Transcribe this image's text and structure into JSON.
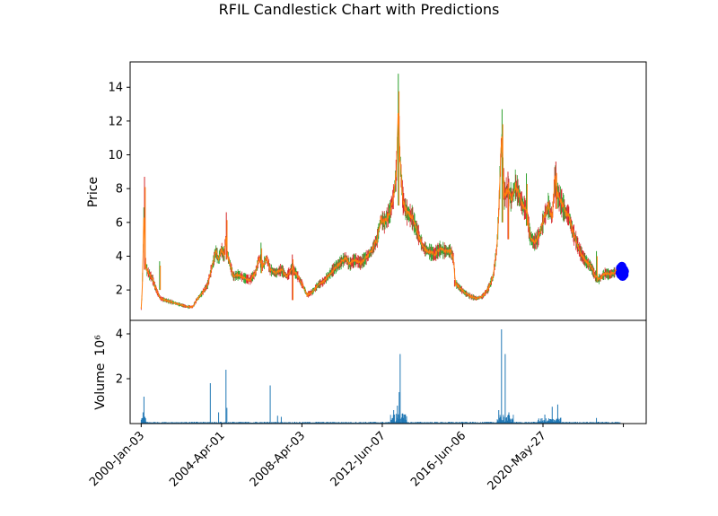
{
  "chart_data": {
    "title": "RFIL Candlestick Chart with Predictions",
    "type": "candlestick",
    "price_panel": {
      "ylabel": "Price",
      "ylim": [
        0.2,
        15.5
      ],
      "yticks": [
        2,
        4,
        6,
        8,
        10,
        12,
        14
      ],
      "colors": {
        "up": "#2ca02c",
        "down": "#d62728",
        "line": "#ff7f0e",
        "prediction": "#0000ff"
      },
      "series_points": [
        [
          0,
          0.9
        ],
        [
          0.05,
          1.8
        ],
        [
          0.1,
          4.2
        ],
        [
          0.15,
          6.8
        ],
        [
          0.2,
          3.9
        ],
        [
          0.3,
          3.2
        ],
        [
          0.45,
          2.9
        ],
        [
          0.6,
          2.7
        ],
        [
          0.75,
          2.2
        ],
        [
          0.9,
          1.8
        ],
        [
          1.05,
          1.5
        ],
        [
          1.3,
          1.4
        ],
        [
          1.6,
          1.3
        ],
        [
          1.9,
          1.2
        ],
        [
          2.2,
          1.1
        ],
        [
          2.5,
          1.0
        ],
        [
          2.8,
          1.0
        ],
        [
          3.0,
          1.4
        ],
        [
          3.3,
          1.8
        ],
        [
          3.6,
          2.3
        ],
        [
          3.8,
          3.2
        ],
        [
          3.9,
          3.6
        ],
        [
          4.05,
          4.3
        ],
        [
          4.2,
          3.8
        ],
        [
          4.35,
          4.4
        ],
        [
          4.5,
          4.0
        ],
        [
          4.6,
          5.1
        ],
        [
          4.7,
          4.0
        ],
        [
          4.9,
          3.2
        ],
        [
          5.0,
          2.8
        ],
        [
          5.3,
          2.9
        ],
        [
          5.6,
          2.7
        ],
        [
          5.9,
          2.6
        ],
        [
          6.2,
          3.0
        ],
        [
          6.4,
          3.9
        ],
        [
          6.6,
          3.4
        ],
        [
          6.8,
          3.9
        ],
        [
          7.0,
          3.2
        ],
        [
          7.3,
          3.0
        ],
        [
          7.6,
          3.2
        ],
        [
          7.9,
          2.8
        ],
        [
          8.2,
          3.3
        ],
        [
          8.5,
          2.8
        ],
        [
          8.8,
          2.2
        ],
        [
          9.0,
          1.7
        ],
        [
          9.3,
          1.9
        ],
        [
          9.6,
          2.3
        ],
        [
          9.9,
          2.5
        ],
        [
          10.2,
          2.9
        ],
        [
          10.5,
          3.3
        ],
        [
          10.8,
          3.6
        ],
        [
          11.1,
          3.9
        ],
        [
          11.3,
          3.5
        ],
        [
          11.6,
          3.8
        ],
        [
          11.9,
          3.6
        ],
        [
          12.2,
          3.9
        ],
        [
          12.5,
          4.3
        ],
        [
          12.8,
          5.0
        ],
        [
          13.0,
          6.2
        ],
        [
          13.2,
          6.0
        ],
        [
          13.5,
          6.6
        ],
        [
          13.7,
          7.6
        ],
        [
          13.85,
          9.0
        ],
        [
          13.95,
          12.5
        ],
        [
          14.05,
          9.6
        ],
        [
          14.2,
          7.3
        ],
        [
          14.4,
          6.6
        ],
        [
          14.7,
          6.3
        ],
        [
          15.0,
          5.4
        ],
        [
          15.3,
          4.5
        ],
        [
          15.6,
          4.3
        ],
        [
          15.9,
          4.1
        ],
        [
          16.2,
          4.4
        ],
        [
          16.5,
          4.3
        ],
        [
          16.8,
          4.3
        ],
        [
          16.95,
          3.8
        ],
        [
          17.05,
          2.4
        ],
        [
          17.3,
          2.1
        ],
        [
          17.6,
          1.8
        ],
        [
          17.9,
          1.6
        ],
        [
          18.2,
          1.5
        ],
        [
          18.5,
          1.6
        ],
        [
          18.8,
          2.0
        ],
        [
          19.1,
          2.8
        ],
        [
          19.3,
          4.5
        ],
        [
          19.4,
          6.6
        ],
        [
          19.55,
          11.0
        ],
        [
          19.7,
          7.6
        ],
        [
          19.9,
          7.9
        ],
        [
          20.1,
          7.4
        ],
        [
          20.3,
          8.2
        ],
        [
          20.5,
          7.6
        ],
        [
          20.7,
          7.0
        ],
        [
          20.9,
          6.7
        ],
        [
          21.1,
          5.2
        ],
        [
          21.3,
          4.8
        ],
        [
          21.5,
          5.0
        ],
        [
          21.7,
          5.6
        ],
        [
          21.9,
          6.4
        ],
        [
          22.1,
          7.0
        ],
        [
          22.3,
          6.3
        ],
        [
          22.45,
          8.6
        ],
        [
          22.6,
          7.6
        ],
        [
          22.8,
          7.2
        ],
        [
          23.0,
          6.6
        ],
        [
          23.2,
          6.4
        ],
        [
          23.4,
          5.5
        ],
        [
          23.6,
          4.9
        ],
        [
          23.8,
          4.3
        ],
        [
          24.0,
          3.9
        ],
        [
          24.2,
          3.6
        ],
        [
          24.4,
          3.4
        ],
        [
          24.6,
          2.9
        ],
        [
          24.8,
          2.6
        ],
        [
          25.0,
          2.8
        ],
        [
          25.2,
          3.0
        ],
        [
          25.4,
          2.9
        ],
        [
          25.6,
          3.0
        ],
        [
          25.8,
          3.1
        ],
        [
          26.0,
          3.2
        ]
      ],
      "spikes": [
        [
          0.18,
          8.7,
          3.2
        ],
        [
          1.0,
          3.7,
          2.0
        ],
        [
          4.62,
          6.6,
          3.8
        ],
        [
          6.5,
          4.8,
          3.0
        ],
        [
          8.2,
          4.1,
          1.4
        ],
        [
          13.95,
          14.8,
          7.0
        ],
        [
          17.0,
          2.6,
          2.2
        ],
        [
          19.58,
          12.7,
          6.0
        ],
        [
          19.9,
          9.0,
          5.0
        ],
        [
          20.9,
          8.9,
          5.8
        ],
        [
          22.5,
          9.6,
          6.8
        ],
        [
          24.7,
          4.3,
          2.5
        ]
      ],
      "prediction_points": [
        [
          25.98,
          3.0
        ],
        [
          26.0,
          3.3
        ],
        [
          26.02,
          2.9
        ],
        [
          26.05,
          3.2
        ],
        [
          26.08,
          3.4
        ],
        [
          26.1,
          3.1
        ],
        [
          26.12,
          2.8
        ],
        [
          26.15,
          3.0
        ],
        [
          26.18,
          3.2
        ],
        [
          26.2,
          2.9
        ],
        [
          26.22,
          3.1
        ]
      ]
    },
    "volume_panel": {
      "ylabel": "Volume",
      "ylabel_unit": "10⁶",
      "ylim": [
        0,
        4.6
      ],
      "yticks": [
        2,
        4
      ],
      "bar_color": "#1f77b4",
      "bars": [
        [
          0.15,
          1.2
        ],
        [
          0.1,
          0.5
        ],
        [
          0.2,
          0.3
        ],
        [
          3.75,
          1.8
        ],
        [
          4.2,
          0.5
        ],
        [
          4.6,
          2.4
        ],
        [
          4.65,
          0.7
        ],
        [
          7.0,
          1.7
        ],
        [
          7.4,
          0.35
        ],
        [
          7.6,
          0.3
        ],
        [
          13.7,
          0.6
        ],
        [
          13.9,
          0.8
        ],
        [
          14.0,
          1.4
        ],
        [
          14.05,
          3.1
        ],
        [
          14.3,
          0.4
        ],
        [
          19.55,
          4.2
        ],
        [
          19.75,
          3.1
        ],
        [
          19.95,
          0.5
        ],
        [
          19.4,
          0.6
        ],
        [
          22.3,
          0.75
        ],
        [
          22.6,
          0.85
        ],
        [
          21.9,
          0.4
        ],
        [
          24.7,
          0.25
        ]
      ]
    },
    "x_axis": {
      "range": [
        -0.6,
        27.4
      ],
      "ticks": [
        {
          "pos": 0,
          "label": "2000-Jan-03"
        },
        {
          "pos": 4.36,
          "label": "2004-Apr-01"
        },
        {
          "pos": 8.72,
          "label": "2008-Apr-03"
        },
        {
          "pos": 13.08,
          "label": "2012-Jun-07"
        },
        {
          "pos": 17.44,
          "label": "2016-Jun-06"
        },
        {
          "pos": 21.8,
          "label": "2020-May-27"
        },
        {
          "pos": 26.16,
          "label": ""
        }
      ]
    }
  }
}
